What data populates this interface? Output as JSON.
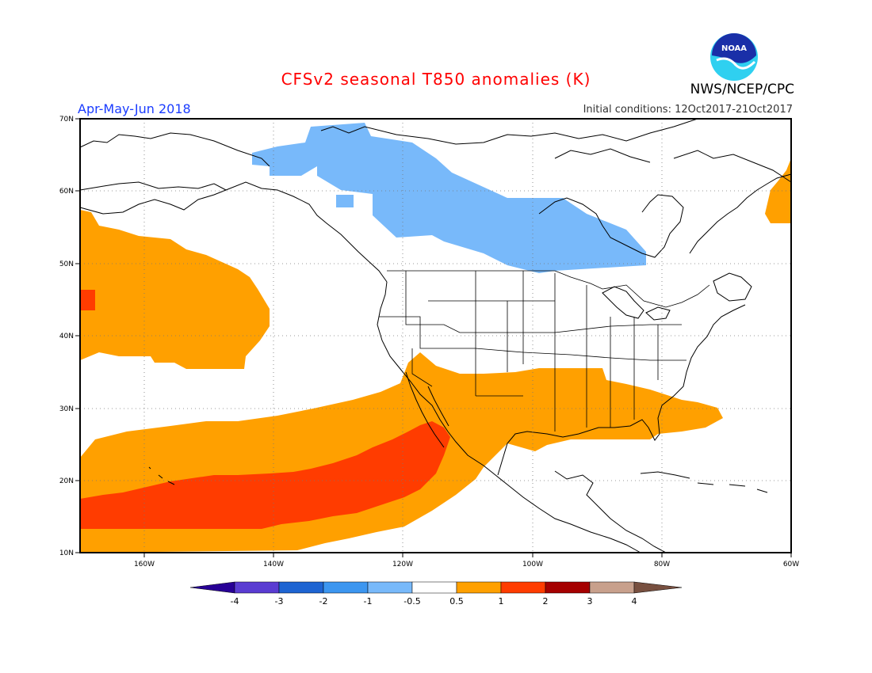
{
  "title": "CFSv2 seasonal T850 anomalies (K)",
  "agency": "NWS/NCEP/CPC",
  "season": "Apr-May-Jun 2018",
  "initial_conditions": "Initial conditions: 12Oct2017-21Oct2017",
  "logo_text": "NOAA",
  "map": {
    "lon_range": [
      -170,
      -60
    ],
    "lat_range": [
      10,
      70
    ],
    "lat_ticks": [
      "70N",
      "60N",
      "50N",
      "40N",
      "30N",
      "20N",
      "10N"
    ],
    "lon_ticks": [
      "160W",
      "140W",
      "120W",
      "100W",
      "80W",
      "60W"
    ],
    "grid": "dotted"
  },
  "colorbar": {
    "labels": [
      "-4",
      "-3",
      "-2",
      "-1",
      "-0.5",
      "0.5",
      "1",
      "2",
      "3",
      "4"
    ],
    "colors": [
      "#280096",
      "#5a3cd2",
      "#1e64d2",
      "#3c96f0",
      "#78b9fa",
      "#ffffff",
      "#ffa000",
      "#ff3c00",
      "#a50000",
      "#c8a08c",
      "#785040"
    ]
  },
  "anomaly_regions": [
    {
      "name": "negative-canada",
      "value": "-1 to -0.5",
      "color": "#78b9fa"
    },
    {
      "name": "positive-north-pacific",
      "value": "0.5 to 1",
      "color": "#ffa000"
    },
    {
      "name": "positive-subtropical-pacific-us-south",
      "value": "0.5 to 1",
      "color": "#ffa000"
    },
    {
      "name": "strong-positive-subtropical-pacific",
      "value": "1 to 2",
      "color": "#ff3c00"
    },
    {
      "name": "positive-labrador",
      "value": "0.5 to 1",
      "color": "#ffa000"
    }
  ]
}
